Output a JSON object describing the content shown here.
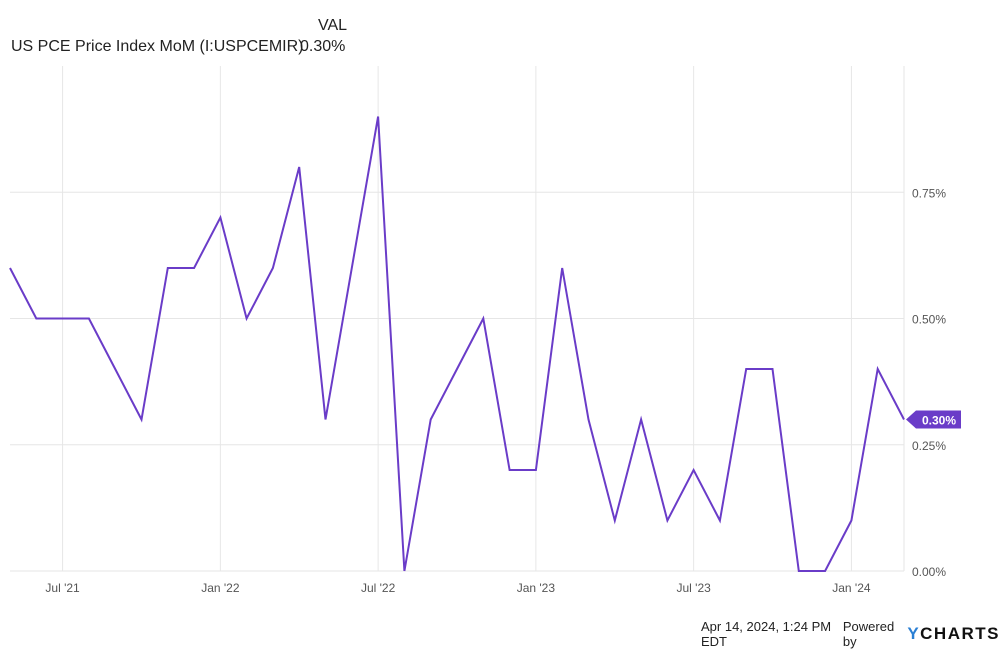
{
  "header": {
    "column_label": "VAL",
    "series_name": "US PCE Price Index MoM (I:USPCEMIR)",
    "series_value": "0.30%"
  },
  "footer": {
    "timestamp": "Apr 14, 2024, 1:24 PM EDT",
    "powered_by": "Powered by",
    "brand": "YCHARTS"
  },
  "colors": {
    "line": "#6a3cc8",
    "grid": "#e6e6e6",
    "axis_text": "#555555",
    "brand_y": "#2a7fd4"
  },
  "chart_data": {
    "type": "line",
    "title": "",
    "xlabel": "",
    "ylabel": "",
    "ylim": [
      0,
      1.0
    ],
    "xlim": [
      "2021-05",
      "2024-03"
    ],
    "grid": true,
    "y_axis_side": "right",
    "yticks": [
      0,
      0.25,
      0.5,
      0.75
    ],
    "ytick_labels": [
      "0.00%",
      "0.25%",
      "0.50%",
      "0.75%"
    ],
    "xticks": [
      "2021-07",
      "2022-01",
      "2022-07",
      "2023-01",
      "2023-07",
      "2024-01"
    ],
    "xtick_labels": [
      "Jul '21",
      "Jan '22",
      "Jul '22",
      "Jan '23",
      "Jul '23",
      "Jan '24"
    ],
    "last_value_label": "0.30%",
    "series": [
      {
        "x": [
          "2021-05",
          "2021-06",
          "2021-07",
          "2021-08",
          "2021-09",
          "2021-10",
          "2021-11",
          "2021-12",
          "2022-01",
          "2022-02",
          "2022-03",
          "2022-04",
          "2022-05",
          "2022-06",
          "2022-07",
          "2022-08",
          "2022-09",
          "2022-10",
          "2022-11",
          "2022-12",
          "2023-01",
          "2023-02",
          "2023-03",
          "2023-04",
          "2023-05",
          "2023-06",
          "2023-07",
          "2023-08",
          "2023-09",
          "2023-10",
          "2023-11",
          "2023-12",
          "2024-01",
          "2024-02",
          "2024-03"
        ],
        "values": [
          0.6,
          0.5,
          0.5,
          0.5,
          0.4,
          0.3,
          0.6,
          0.6,
          0.7,
          0.5,
          0.6,
          0.8,
          0.3,
          0.6,
          0.9,
          0.0,
          0.3,
          0.4,
          0.5,
          0.2,
          0.2,
          0.6,
          0.3,
          0.1,
          0.3,
          0.1,
          0.2,
          0.1,
          0.4,
          0.4,
          0.0,
          0.0,
          0.1,
          0.4,
          0.3
        ]
      }
    ]
  }
}
